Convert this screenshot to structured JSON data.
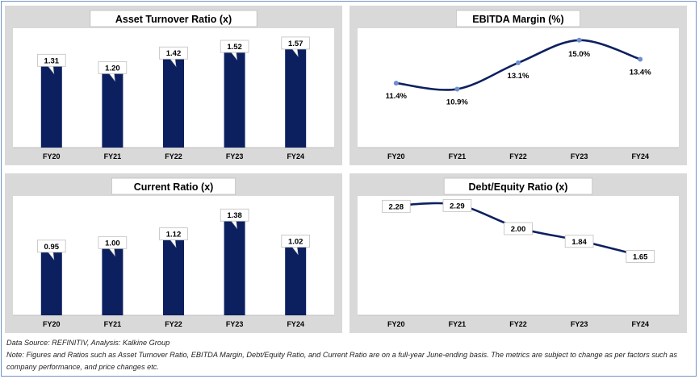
{
  "chart_data": [
    {
      "type": "bar",
      "title": "Asset Turnover Ratio (x)",
      "categories": [
        "FY20",
        "FY21",
        "FY22",
        "FY23",
        "FY24"
      ],
      "values": [
        1.31,
        1.2,
        1.42,
        1.52,
        1.57
      ],
      "value_labels": [
        "1.31",
        "1.20",
        "1.42",
        "1.52",
        "1.57"
      ],
      "ylim": [
        0,
        1.8
      ],
      "color": "#0c2060",
      "grid": false
    },
    {
      "type": "line",
      "title": "EBITDA Margin (%)",
      "categories": [
        "FY20",
        "FY21",
        "FY22",
        "FY23",
        "FY24"
      ],
      "values": [
        11.4,
        10.9,
        13.1,
        15.0,
        13.4
      ],
      "value_labels": [
        "11.4%",
        "10.9%",
        "13.1%",
        "15.0%",
        "13.4%"
      ],
      "ylim": [
        6,
        16
      ],
      "color": "#0c2060",
      "marker_color": "#6f8fd0",
      "grid": false
    },
    {
      "type": "bar",
      "title": "Current Ratio (x)",
      "categories": [
        "FY20",
        "FY21",
        "FY22",
        "FY23",
        "FY24"
      ],
      "values": [
        0.95,
        1.0,
        1.12,
        1.38,
        1.02
      ],
      "value_labels": [
        "0.95",
        "1.00",
        "1.12",
        "1.38",
        "1.02"
      ],
      "ylim": [
        0,
        1.65
      ],
      "color": "#0c2060",
      "grid": false
    },
    {
      "type": "line",
      "title": "Debt/Equity Ratio (x)",
      "categories": [
        "FY20",
        "FY21",
        "FY22",
        "FY23",
        "FY24"
      ],
      "values": [
        2.28,
        2.29,
        2.0,
        1.84,
        1.65
      ],
      "value_labels": [
        "2.28",
        "2.29",
        "2.00",
        "1.84",
        "1.65"
      ],
      "ylim": [
        0.9,
        2.4
      ],
      "color": "#0c2060",
      "grid": false
    }
  ],
  "footer": {
    "source": "Data Source: REFINITIV, Analysis: Kalkine Group",
    "note_line1": "Note: Figures and Ratios such as Asset Turnover Ratio, EBITDA Margin, Debt/Equity Ratio, and Current Ratio  are on a full-year June-ending basis. The metrics are subject to change as per factors such as",
    "note_line2": "company performance, and price changes etc."
  }
}
